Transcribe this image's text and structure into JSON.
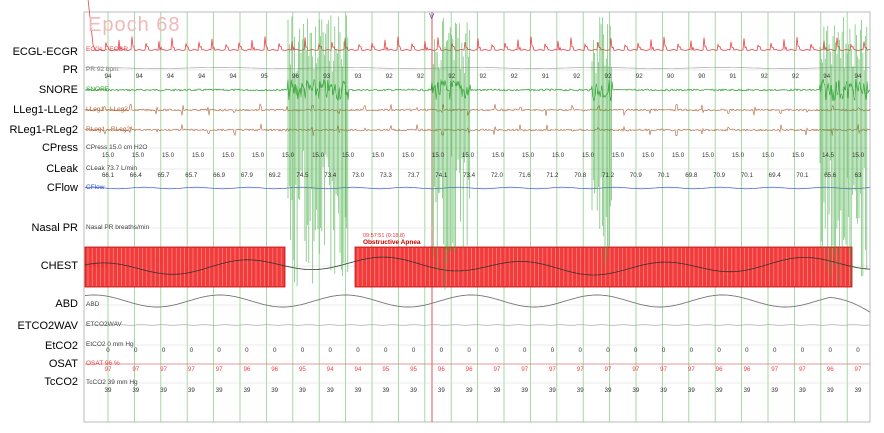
{
  "epoch_title": "Epoch 68",
  "channels": [
    {
      "key": "ecg",
      "label": "ECGL-ECGR",
      "inline": "ECGL - ECGR",
      "color": "#e8454a"
    },
    {
      "key": "pr",
      "label": "PR",
      "inline": "PR  92 bpm",
      "color": "#777777"
    },
    {
      "key": "snore",
      "label": "SNORE",
      "inline": "SNORE",
      "color": "#2e9e2e"
    },
    {
      "key": "lleg",
      "label": "LLeg1-LLeg2",
      "inline": "LLeg1 - LLeg2",
      "color": "#b5653a"
    },
    {
      "key": "rleg",
      "label": "RLeg1-RLeg2",
      "inline": "RLeg1 - RLeg2",
      "color": "#b5653a"
    },
    {
      "key": "cpress",
      "label": "CPress",
      "inline": "CPress  15.0 cm H2O",
      "color": "#444444"
    },
    {
      "key": "cleak",
      "label": "CLeak",
      "inline": "CLeak  73.7 L/min",
      "color": "#444444"
    },
    {
      "key": "cflow",
      "label": "CFlow",
      "inline": "CFlow",
      "color": "#2b4bd6"
    },
    {
      "key": "nasal",
      "label": "Nasal PR",
      "inline": "Nasal PR  breaths/min",
      "color": "#444444"
    },
    {
      "key": "chest",
      "label": "CHEST",
      "inline": "CHEST",
      "color": "#444444"
    },
    {
      "key": "abd",
      "label": "ABD",
      "inline": "ABD",
      "color": "#444444"
    },
    {
      "key": "etco2wav",
      "label": "ETCO2WAV",
      "inline": "ETCO2WAV",
      "color": "#444444"
    },
    {
      "key": "etco2",
      "label": "EtCO2",
      "inline": "EtCO2  0 mm Hg",
      "color": "#444444"
    },
    {
      "key": "osat",
      "label": "OSAT",
      "inline": "OSAT  96 %",
      "color": "#e8454a"
    },
    {
      "key": "tcco2",
      "label": "TcCO2",
      "inline": "TcCO2  39 mm Hg",
      "color": "#444444"
    }
  ],
  "pr_values": [
    "94",
    "94",
    "94",
    "94",
    "94",
    "95",
    "96",
    "93",
    "93",
    "92",
    "92",
    "92",
    "92",
    "91",
    "91",
    "92",
    "92",
    "92",
    "90",
    "90",
    "91",
    "92",
    "92",
    "92",
    "93",
    "93",
    "92",
    "92",
    "92",
    "93",
    "94",
    "94",
    "94",
    "94",
    "94",
    "94",
    "94",
    "94",
    "94",
    "94",
    "94",
    "94",
    "94",
    "94",
    "94",
    "94",
    "94"
  ],
  "pr_values_visible": [
    "94",
    "94",
    "94",
    "94",
    "94",
    "95",
    "96",
    "93",
    "93",
    "92",
    "92",
    "92",
    "92",
    "92",
    "91",
    "92",
    "92",
    "92",
    "90",
    "90",
    "91",
    "92",
    "92",
    "94",
    "94"
  ],
  "cpress_values": [
    "15.0",
    "15.0",
    "15.0",
    "15.0",
    "15.0",
    "15.0",
    "15.0",
    "15.0",
    "15.0",
    "15.0",
    "15.0",
    "15.0",
    "15.0",
    "15.0",
    "15.0",
    "15.0",
    "15.0",
    "15.0",
    "15.0",
    "15.0",
    "15.0",
    "15.0",
    "15.0",
    "15.0",
    "14.5",
    "15.0"
  ],
  "cleak_values": [
    "66.1",
    "66.4",
    "65.7",
    "65.7",
    "66.9",
    "67.9",
    "69.2",
    "74.5",
    "73.4",
    "73.0",
    "73.3",
    "73.7",
    "74.1",
    "73.4",
    "72.0",
    "71.6",
    "71.2",
    "70.8",
    "71.2",
    "70.9",
    "70.1",
    "69.8",
    "70.9",
    "70.1",
    "69.4",
    "70.1",
    "65.6",
    "63"
  ],
  "etco2_values": [
    "0",
    "0",
    "0",
    "0",
    "0",
    "0",
    "0",
    "0",
    "0",
    "0",
    "0",
    "0",
    "0",
    "0",
    "0",
    "0",
    "0",
    "0",
    "0",
    "0",
    "0",
    "0",
    "0",
    "0",
    "0",
    "0",
    "0",
    "0"
  ],
  "osat_values": [
    "97",
    "97",
    "97",
    "97",
    "97",
    "96",
    "96",
    "95",
    "94",
    "94",
    "95",
    "95",
    "96",
    "96",
    "97",
    "97",
    "97",
    "97",
    "97",
    "97",
    "97",
    "97",
    "96",
    "96",
    "97",
    "97",
    "96",
    "97"
  ],
  "tcco2_values": [
    "39",
    "39",
    "39",
    "39",
    "39",
    "39",
    "39",
    "39",
    "39",
    "39",
    "39",
    "39",
    "39",
    "39",
    "39",
    "39",
    "39",
    "39",
    "39",
    "39",
    "39",
    "39",
    "39",
    "39",
    "39",
    "39",
    "39",
    "39"
  ],
  "event": {
    "time": "09:57:51 (0:18.8)",
    "name": "Obstructive Apnea",
    "color": "#e8303a"
  }
}
